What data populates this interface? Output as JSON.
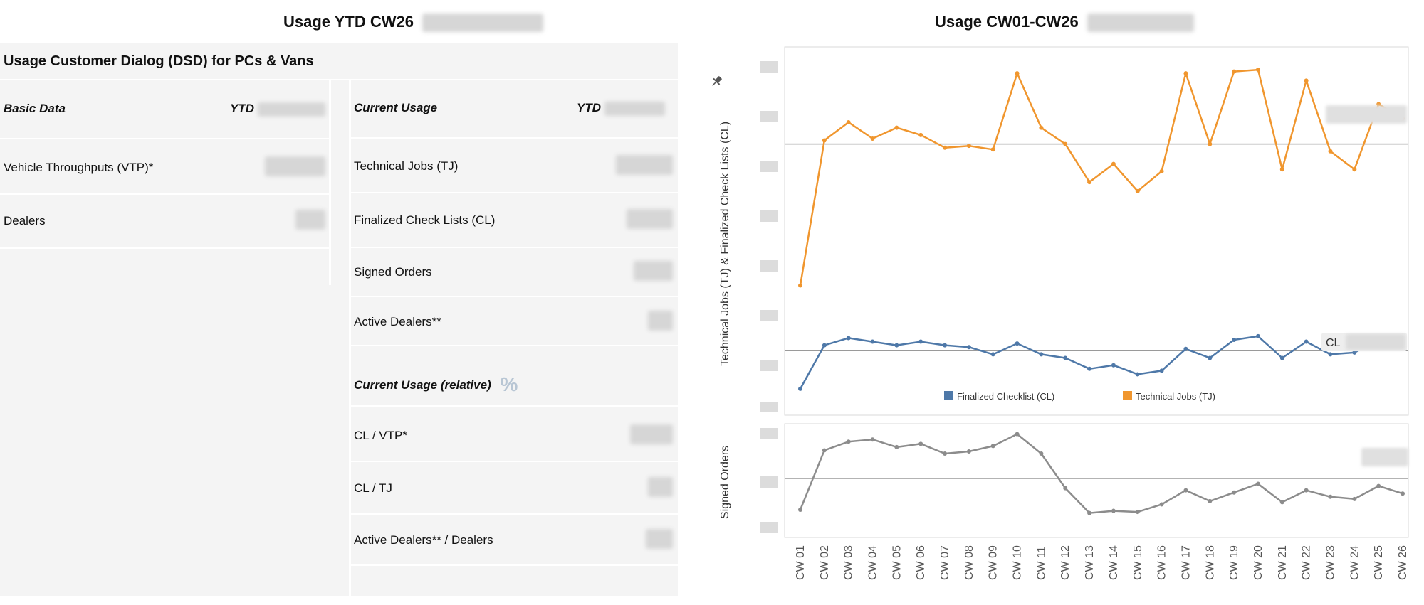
{
  "left": {
    "title": "Usage YTD CW26",
    "panel_title": "Usage Customer Dialog (DSD) for PCs & Vans",
    "basic": {
      "header": "Basic Data",
      "ytd_header": "YTD",
      "rows": [
        {
          "label": "Vehicle Throughputs (VTP)*"
        },
        {
          "label": "Dealers"
        }
      ]
    },
    "current": {
      "header": "Current Usage",
      "ytd_header": "YTD",
      "rows": [
        {
          "label": "Technical Jobs (TJ)"
        },
        {
          "label": "Finalized Check Lists (CL)"
        },
        {
          "label": "Signed Orders"
        },
        {
          "label": "Active Dealers**"
        }
      ]
    },
    "relative": {
      "header": "Current Usage (relative)",
      "icon": "percent-icon",
      "rows": [
        {
          "label": "CL / VTP*"
        },
        {
          "label": "CL / TJ"
        },
        {
          "label": "Active Dealers** / Dealers"
        }
      ]
    }
  },
  "right": {
    "title": "Usage CW01-CW26",
    "pin_icon": "pin-icon"
  },
  "chart_data": [
    {
      "type": "line",
      "ylabel": "Technical Jobs (TJ) & Finalized Check Lists (CL)",
      "x": [
        "CW 01",
        "CW 02",
        "CW 03",
        "CW 04",
        "CW 05",
        "CW 06",
        "CW 07",
        "CW 08",
        "CW 09",
        "CW 10",
        "CW 11",
        "CW 12",
        "CW 13",
        "CW 14",
        "CW 15",
        "CW 16",
        "CW 17",
        "CW 18",
        "CW 19",
        "CW 20",
        "CW 21",
        "CW 22",
        "CW 23",
        "CW 24",
        "CW 25",
        "CW 26"
      ],
      "ylim": [
        0,
        100
      ],
      "reference_lines": [
        {
          "series": "Technical Jobs (TJ)",
          "value": 74
        },
        {
          "series": "Finalized Checklist (CL)",
          "value": 17,
          "label": "CL"
        }
      ],
      "series": [
        {
          "name": "Technical Jobs (TJ)",
          "color": "#f0962e",
          "values": [
            35,
            75,
            80,
            75.5,
            78.5,
            76.5,
            73,
            73.5,
            72.5,
            93.5,
            78.5,
            74,
            63.5,
            68.5,
            61,
            66.5,
            93.5,
            74,
            94,
            94.5,
            67,
            91.5,
            72,
            67,
            85,
            81
          ]
        },
        {
          "name": "Finalized Checklist (CL)",
          "color": "#4e78a8",
          "values": [
            6.5,
            18.5,
            20.5,
            19.5,
            18.5,
            19.5,
            18.5,
            18,
            16,
            19,
            16,
            15,
            12,
            13,
            10.5,
            11.5,
            17.5,
            15,
            20,
            21,
            15,
            19.5,
            16,
            16.5,
            20,
            18
          ]
        }
      ],
      "legend": {
        "position": "bottom",
        "items": [
          "Finalized Checklist (CL)",
          "Technical Jobs (TJ)"
        ]
      }
    },
    {
      "type": "line",
      "ylabel": "Signed Orders",
      "x": [
        "CW 01",
        "CW 02",
        "CW 03",
        "CW 04",
        "CW 05",
        "CW 06",
        "CW 07",
        "CW 08",
        "CW 09",
        "CW 10",
        "CW 11",
        "CW 12",
        "CW 13",
        "CW 14",
        "CW 15",
        "CW 16",
        "CW 17",
        "CW 18",
        "CW 19",
        "CW 20",
        "CW 21",
        "CW 22",
        "CW 23",
        "CW 24",
        "CW 25",
        "CW 26"
      ],
      "ylim": [
        0,
        100
      ],
      "reference_lines": [
        {
          "value": 52
        }
      ],
      "series": [
        {
          "name": "Signed Orders",
          "color": "#8c8c8c",
          "values": [
            23,
            78,
            86,
            88,
            81,
            84,
            75,
            77,
            82,
            93,
            75,
            43,
            20,
            22,
            21,
            28,
            41,
            31,
            39,
            47,
            30,
            41,
            35,
            33,
            45,
            38
          ]
        }
      ]
    }
  ]
}
